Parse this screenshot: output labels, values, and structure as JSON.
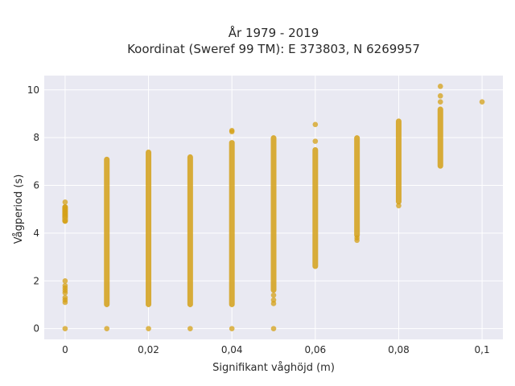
{
  "chart_data": {
    "type": "scatter",
    "title": "År 1979 - 2019",
    "subtitle": "Koordinat (Sweref 99 TM): E 373803, N 6269957",
    "xlabel": "Signifikant våghöjd (m)",
    "ylabel": "Vågperiod (s)",
    "xlim": [
      -0.005,
      0.105
    ],
    "ylim": [
      -0.45,
      10.6
    ],
    "x_ticks": [
      0,
      0.02,
      0.04,
      0.06,
      0.08,
      0.1
    ],
    "x_tick_labels": [
      "0",
      "0,02",
      "0,04",
      "0,06",
      "0,08",
      "0,1"
    ],
    "y_ticks": [
      0,
      2,
      4,
      6,
      8,
      10
    ],
    "y_tick_labels": [
      "0",
      "2",
      "4",
      "6",
      "8",
      "10"
    ],
    "grid": true,
    "legend": "none",
    "colors": {
      "marker": "#D4A017",
      "plot_bg": "#E9E9F2",
      "grid": "#ffffff"
    },
    "columns": [
      {
        "x": 0.0,
        "ranges": [
          [
            4.5,
            5.1
          ]
        ],
        "points": [
          0,
          1.1,
          1.2,
          1.3,
          1.5,
          1.6,
          1.7,
          1.8,
          2.0,
          4.5,
          4.7,
          4.8,
          4.9,
          5.0,
          5.1,
          5.3
        ]
      },
      {
        "x": 0.01,
        "ranges": [
          [
            1.0,
            7.1
          ]
        ],
        "points": [
          0
        ]
      },
      {
        "x": 0.02,
        "ranges": [
          [
            1.0,
            7.4
          ]
        ],
        "points": [
          0
        ]
      },
      {
        "x": 0.03,
        "ranges": [
          [
            1.0,
            7.2
          ]
        ],
        "points": [
          0
        ]
      },
      {
        "x": 0.04,
        "ranges": [
          [
            1.0,
            7.8
          ]
        ],
        "points": [
          0,
          8.25,
          8.3
        ]
      },
      {
        "x": 0.05,
        "ranges": [
          [
            1.6,
            8.0
          ]
        ],
        "points": [
          0,
          1.05,
          1.2,
          1.4
        ]
      },
      {
        "x": 0.06,
        "ranges": [
          [
            2.6,
            7.5
          ]
        ],
        "points": [
          7.85,
          8.55
        ]
      },
      {
        "x": 0.07,
        "ranges": [
          [
            3.9,
            8.0
          ]
        ],
        "points": [
          3.7,
          3.8
        ]
      },
      {
        "x": 0.08,
        "ranges": [
          [
            5.3,
            8.7
          ]
        ],
        "points": [
          5.15
        ]
      },
      {
        "x": 0.09,
        "ranges": [
          [
            6.8,
            9.2
          ]
        ],
        "points": [
          9.5,
          9.75,
          10.15
        ]
      },
      {
        "x": 0.1,
        "ranges": [],
        "points": [
          9.5
        ]
      }
    ]
  }
}
